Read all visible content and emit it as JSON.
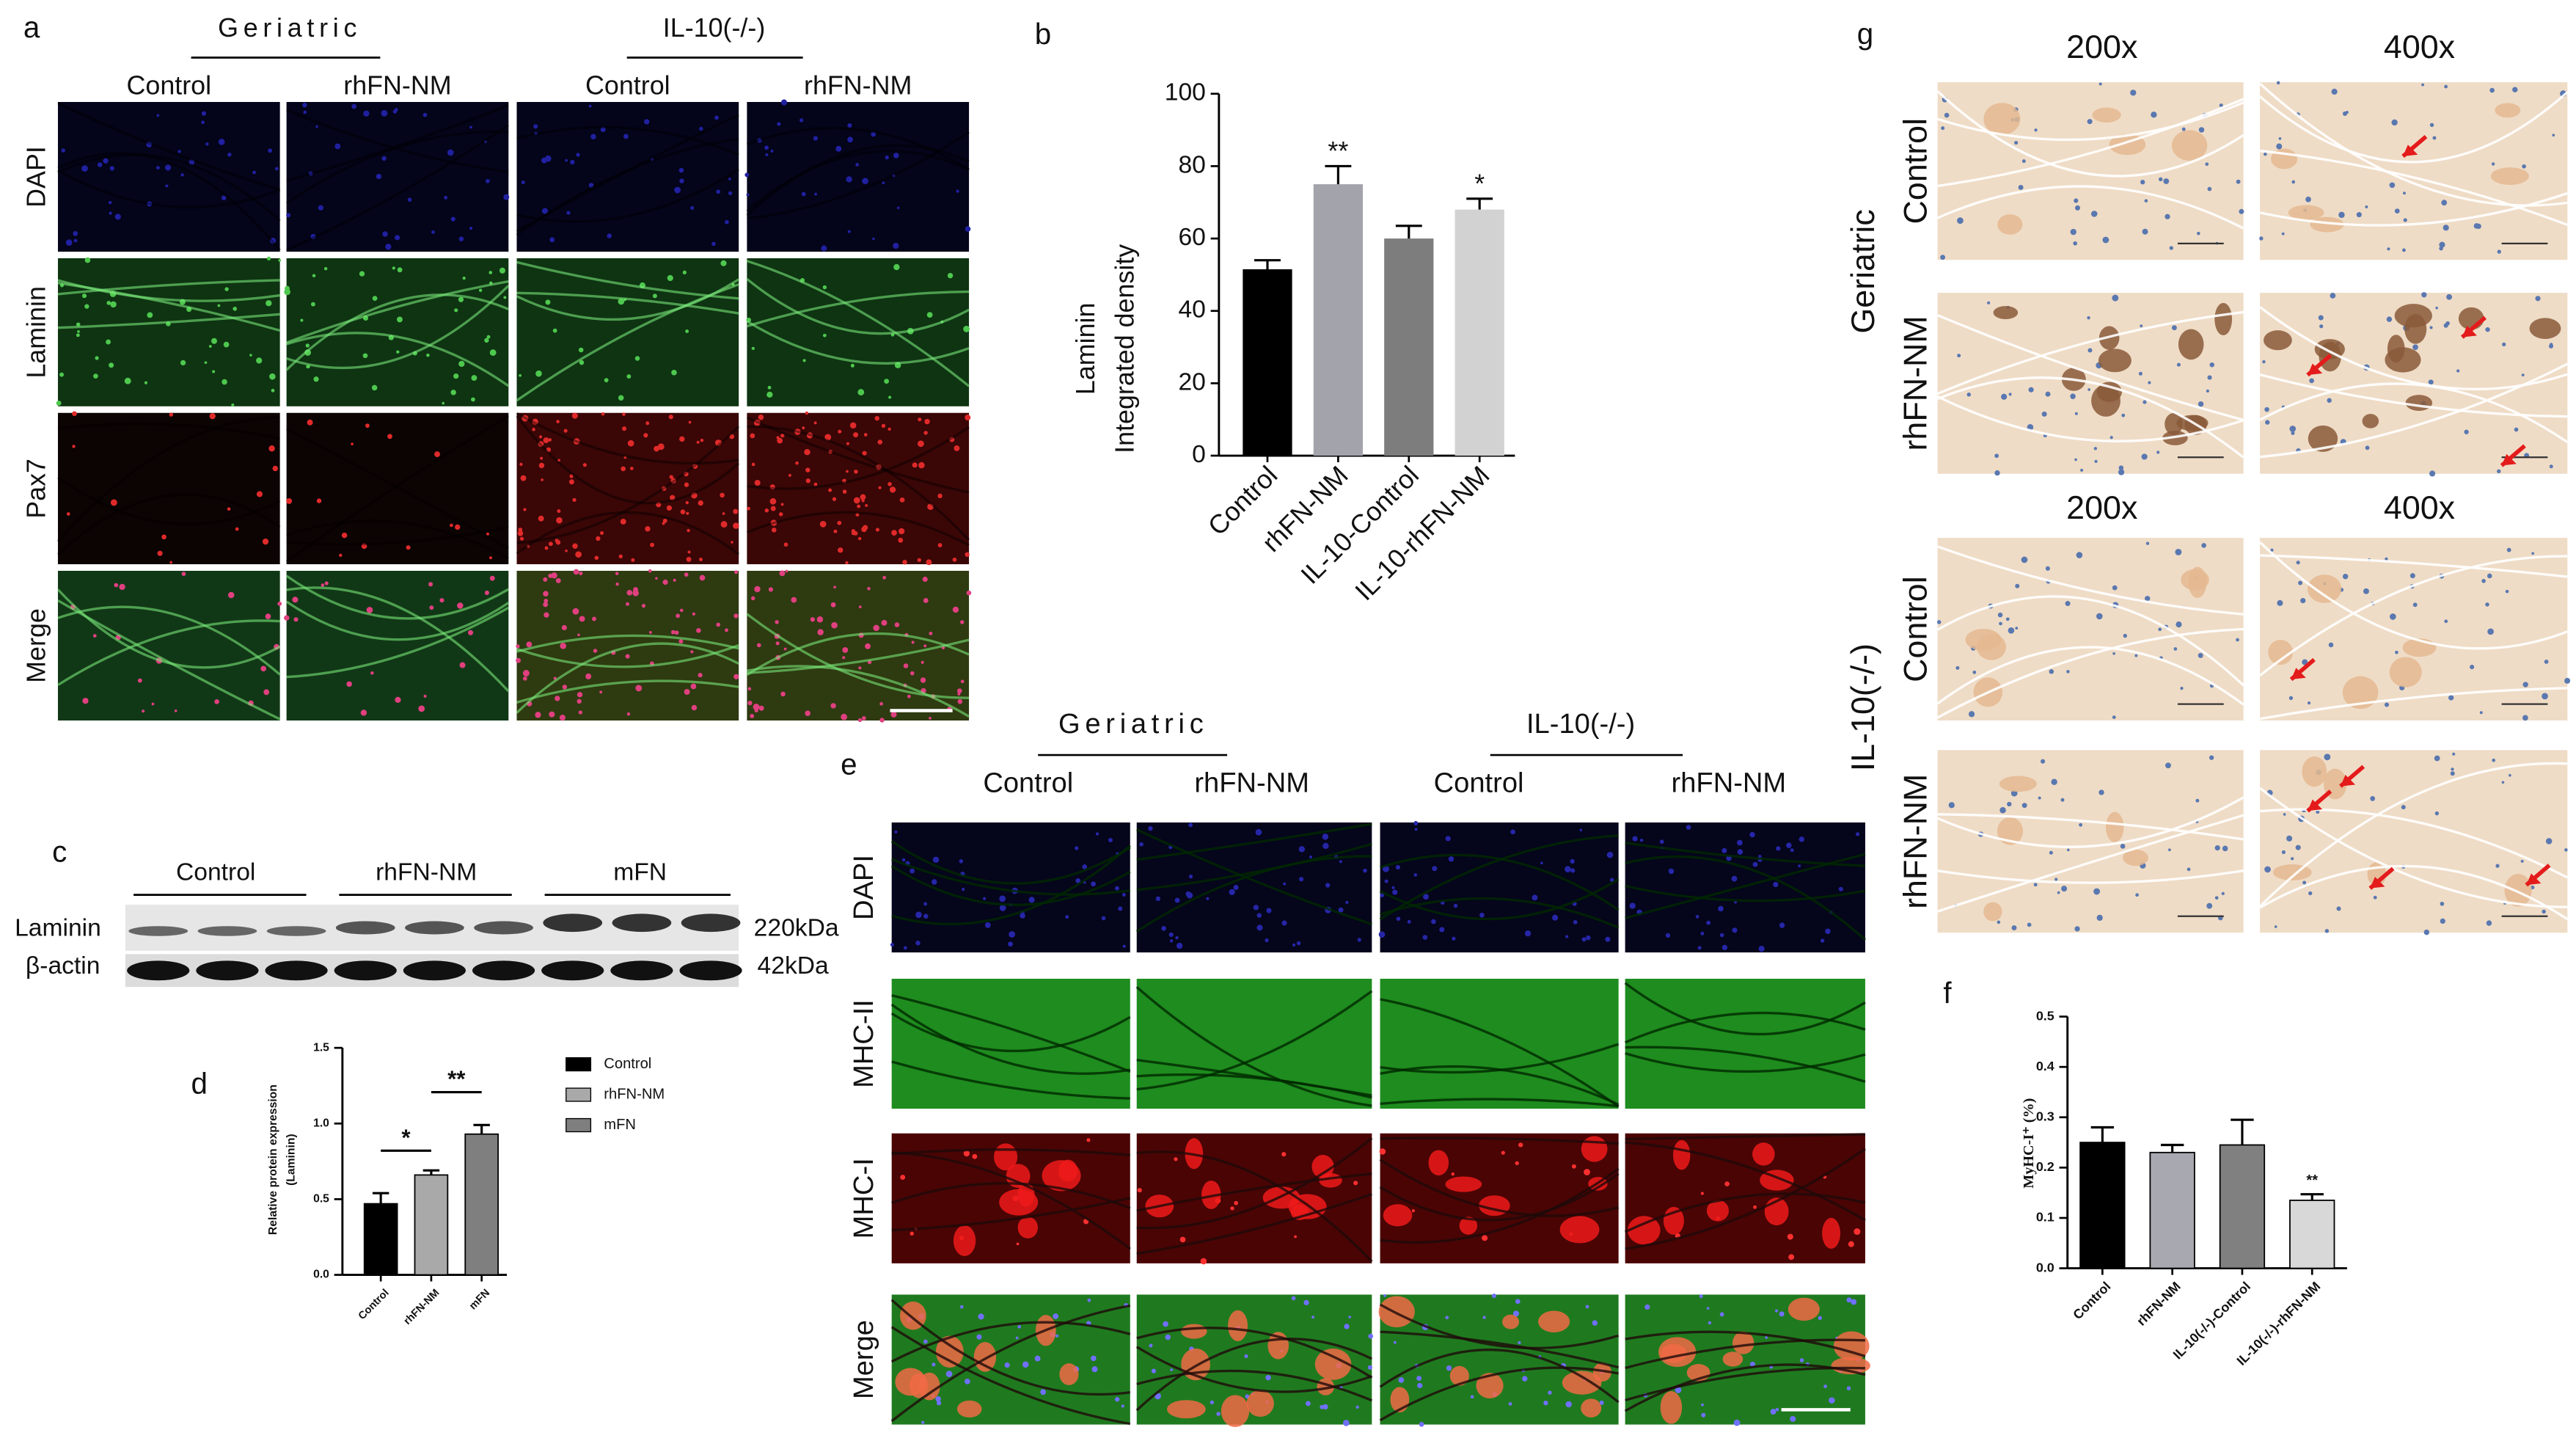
{
  "figure": {
    "panel_labels": [
      "a",
      "b",
      "c",
      "d",
      "e",
      "f",
      "g"
    ],
    "a": {
      "groups": [
        "Geriatric",
        "IL-10(-/-)"
      ],
      "columns": [
        "Control",
        "rhFN-NM",
        "Control",
        "rhFN-NM"
      ],
      "rows": [
        "DAPI",
        "Laminin",
        "Pax7",
        "Merge"
      ]
    },
    "c": {
      "groups": [
        "Control",
        "rhFN-NM",
        "mFN"
      ],
      "rows": [
        "Laminin",
        "β-actin"
      ],
      "sizes": [
        "220kDa",
        "42kDa"
      ]
    },
    "e": {
      "groups": [
        "Geriatric",
        "IL-10(-/-)"
      ],
      "columns": [
        "Control",
        "rhFN-NM",
        "Control",
        "rhFN-NM"
      ],
      "rows": [
        "DAPI",
        "MHC-II",
        "MHC-I",
        "Merge"
      ]
    },
    "g": {
      "magnifications": [
        "200x",
        "400x",
        "200x",
        "400x"
      ],
      "groups": [
        "Geriatric",
        "IL-10(-/-)"
      ],
      "rows": [
        "Control",
        "rhFN-NM",
        "Control",
        "rhFN-NM"
      ]
    }
  },
  "chart_data": [
    {
      "type": "bar",
      "ylabel": [
        "Laminin",
        "Integrated density"
      ],
      "categories": [
        "Control",
        "rhFN-NM",
        "IL-10-Control",
        "IL-10-rhFN-NM"
      ],
      "values": [
        51.5,
        75,
        60,
        68
      ],
      "errors": [
        2.5,
        5,
        3.5,
        3
      ],
      "colors": [
        "#000000",
        "#a3a3ab",
        "#7d7d7d",
        "#d2d2d2"
      ],
      "annotations": [
        null,
        "**",
        null,
        "*"
      ],
      "ylim": [
        0,
        100
      ],
      "yticks": [
        0,
        20,
        40,
        60,
        80,
        100
      ]
    },
    {
      "type": "bar",
      "ylabel": [
        "Relative protein expression",
        "(Laminin)"
      ],
      "categories": [
        "Control",
        "rhFN-NM",
        "mFN"
      ],
      "values": [
        0.47,
        0.66,
        0.93
      ],
      "errors": [
        0.07,
        0.03,
        0.06
      ],
      "colors": [
        "#000000",
        "#a9a9a9",
        "#7f7f7f"
      ],
      "comparisons": [
        {
          "text": "*",
          "between": [
            0,
            1
          ]
        },
        {
          "text": "**",
          "between": [
            1,
            2
          ]
        }
      ],
      "legend": "right",
      "ylim": [
        0,
        1.5
      ],
      "yticks": [
        {
          "value": 0,
          "label": "0.0"
        },
        0.5,
        {
          "value": 1,
          "label": "1.0"
        },
        1.5
      ]
    },
    {
      "type": "bar",
      "ylabel": [
        "MyHC-I⁺ (%)"
      ],
      "categories": [
        "Control",
        "rhFN-NM",
        "IL-10(-/-)-Control",
        "IL-10(-/-)-rhFN-NM"
      ],
      "values": [
        0.25,
        0.23,
        0.245,
        0.135
      ],
      "errors": [
        0.03,
        0.015,
        0.05,
        0.012
      ],
      "colors": [
        "#000000",
        "#a8a8b0",
        "#808080",
        "#d8d8d8"
      ],
      "annotations": [
        null,
        null,
        null,
        "**"
      ],
      "ylim": [
        0,
        0.5
      ],
      "yticks": [
        {
          "value": 0,
          "label": "0.0"
        },
        0.1,
        0.2,
        0.3,
        0.4,
        0.5
      ]
    }
  ]
}
